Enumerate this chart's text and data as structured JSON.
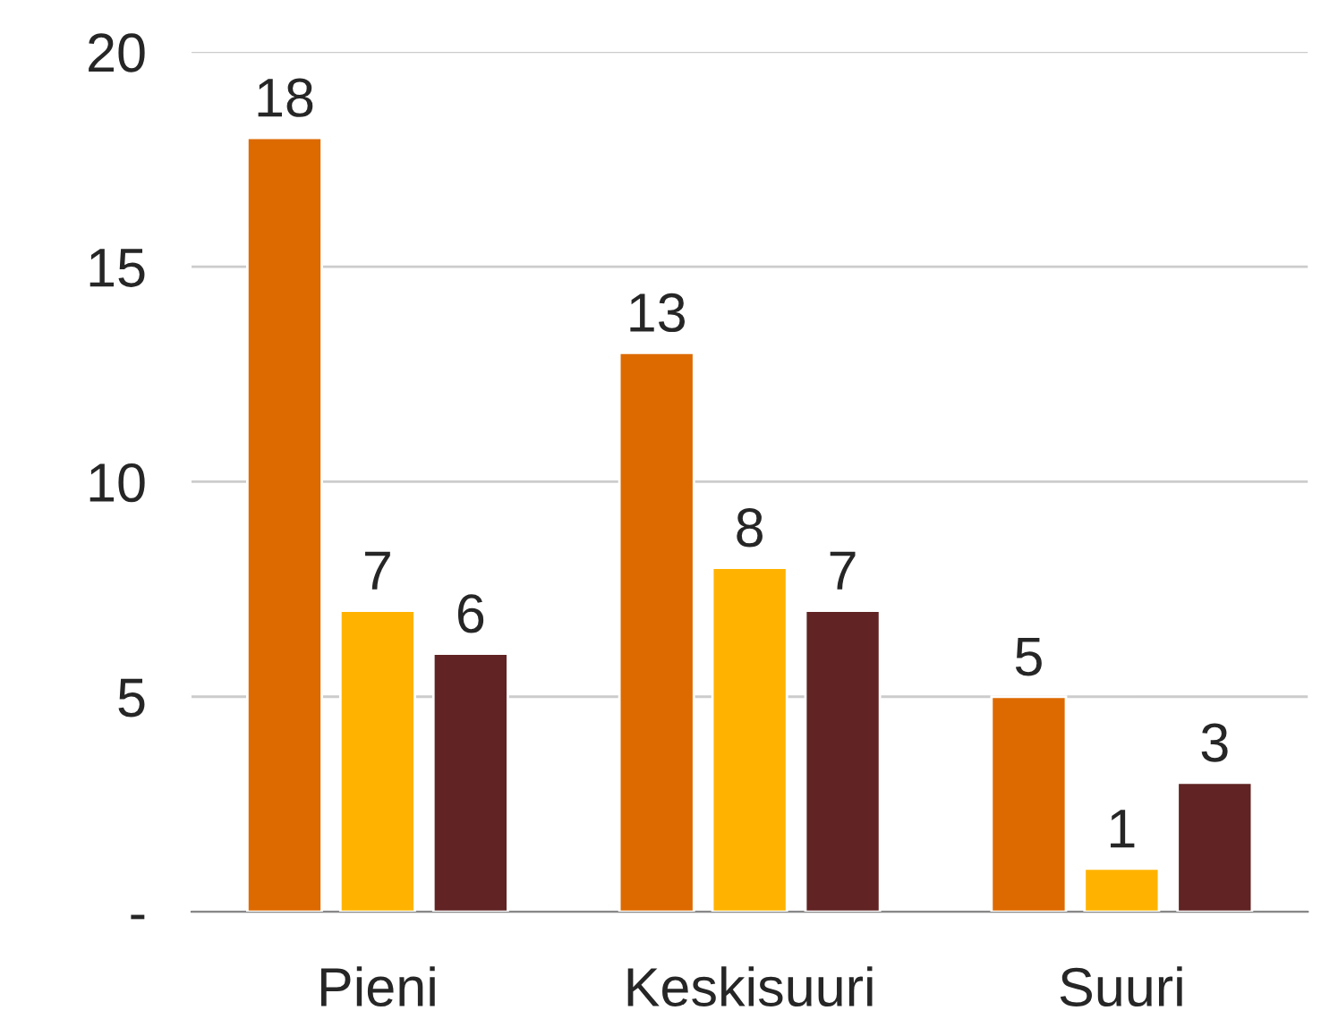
{
  "chart_data": {
    "type": "bar",
    "categories": [
      "Pieni",
      "Keskisuuri",
      "Suuri"
    ],
    "series": [
      {
        "color": "#dd6a00",
        "values": [
          18,
          13,
          5
        ]
      },
      {
        "color": "#ffb300",
        "values": [
          7,
          8,
          1
        ]
      },
      {
        "color": "#612323",
        "values": [
          6,
          7,
          3
        ]
      }
    ],
    "ylim": [
      0,
      20
    ],
    "yticks": [
      {
        "value": 0,
        "label": "-"
      },
      5,
      10,
      15,
      20
    ],
    "grid": "y",
    "data_labels": true
  }
}
